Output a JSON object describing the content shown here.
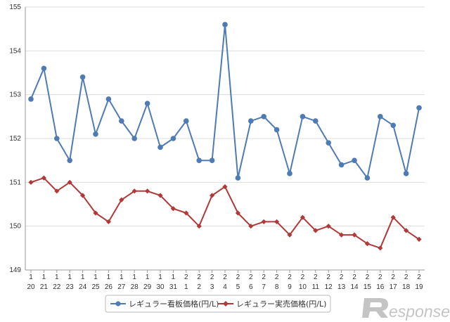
{
  "chart_data": {
    "type": "line",
    "title": "",
    "xlabel": "",
    "ylabel": "",
    "ylim": [
      149,
      155
    ],
    "yticks": [
      "149",
      "150",
      "151",
      "152",
      "153",
      "154",
      "155"
    ],
    "grid": true,
    "legend_position": "bottom",
    "categories": [
      {
        "month": "1",
        "day": "20"
      },
      {
        "month": "1",
        "day": "21"
      },
      {
        "month": "1",
        "day": "22"
      },
      {
        "month": "1",
        "day": "23"
      },
      {
        "month": "1",
        "day": "24"
      },
      {
        "month": "1",
        "day": "25"
      },
      {
        "month": "1",
        "day": "26"
      },
      {
        "month": "1",
        "day": "27"
      },
      {
        "month": "1",
        "day": "28"
      },
      {
        "month": "1",
        "day": "29"
      },
      {
        "month": "1",
        "day": "30"
      },
      {
        "month": "1",
        "day": "31"
      },
      {
        "month": "2",
        "day": "1"
      },
      {
        "month": "2",
        "day": "2"
      },
      {
        "month": "2",
        "day": "3"
      },
      {
        "month": "2",
        "day": "4"
      },
      {
        "month": "2",
        "day": "5"
      },
      {
        "month": "2",
        "day": "6"
      },
      {
        "month": "2",
        "day": "7"
      },
      {
        "month": "2",
        "day": "8"
      },
      {
        "month": "2",
        "day": "9"
      },
      {
        "month": "2",
        "day": "10"
      },
      {
        "month": "2",
        "day": "11"
      },
      {
        "month": "2",
        "day": "12"
      },
      {
        "month": "2",
        "day": "13"
      },
      {
        "month": "2",
        "day": "14"
      },
      {
        "month": "2",
        "day": "15"
      },
      {
        "month": "2",
        "day": "16"
      },
      {
        "month": "2",
        "day": "17"
      },
      {
        "month": "2",
        "day": "18"
      },
      {
        "month": "2",
        "day": "19"
      }
    ],
    "series": [
      {
        "name": "レギュラー看板価格(円/L)",
        "color": "#4f7bb5",
        "marker": "circle",
        "values": [
          152.9,
          153.6,
          152.0,
          151.5,
          153.4,
          152.1,
          152.9,
          152.4,
          152.0,
          152.8,
          151.8,
          152.0,
          152.4,
          151.5,
          151.5,
          154.6,
          151.1,
          152.4,
          152.5,
          152.2,
          151.2,
          152.5,
          152.4,
          151.9,
          151.4,
          151.5,
          151.1,
          152.5,
          152.3,
          151.2,
          152.7
        ]
      },
      {
        "name": "レギュラー実売価格(円/L)",
        "color": "#b03a3a",
        "marker": "diamond",
        "values": [
          151.0,
          151.1,
          150.8,
          151.0,
          150.7,
          150.3,
          150.1,
          150.6,
          150.8,
          150.8,
          150.7,
          150.4,
          150.3,
          150.0,
          150.7,
          150.9,
          150.3,
          150.0,
          150.1,
          150.1,
          149.8,
          150.2,
          149.9,
          150.0,
          149.8,
          149.8,
          149.6,
          149.5,
          150.2,
          149.9,
          149.7
        ]
      }
    ]
  },
  "watermark": {
    "text": "esponse.",
    "icon": "response-r-logo-icon",
    "color": "#c0c0c0"
  }
}
